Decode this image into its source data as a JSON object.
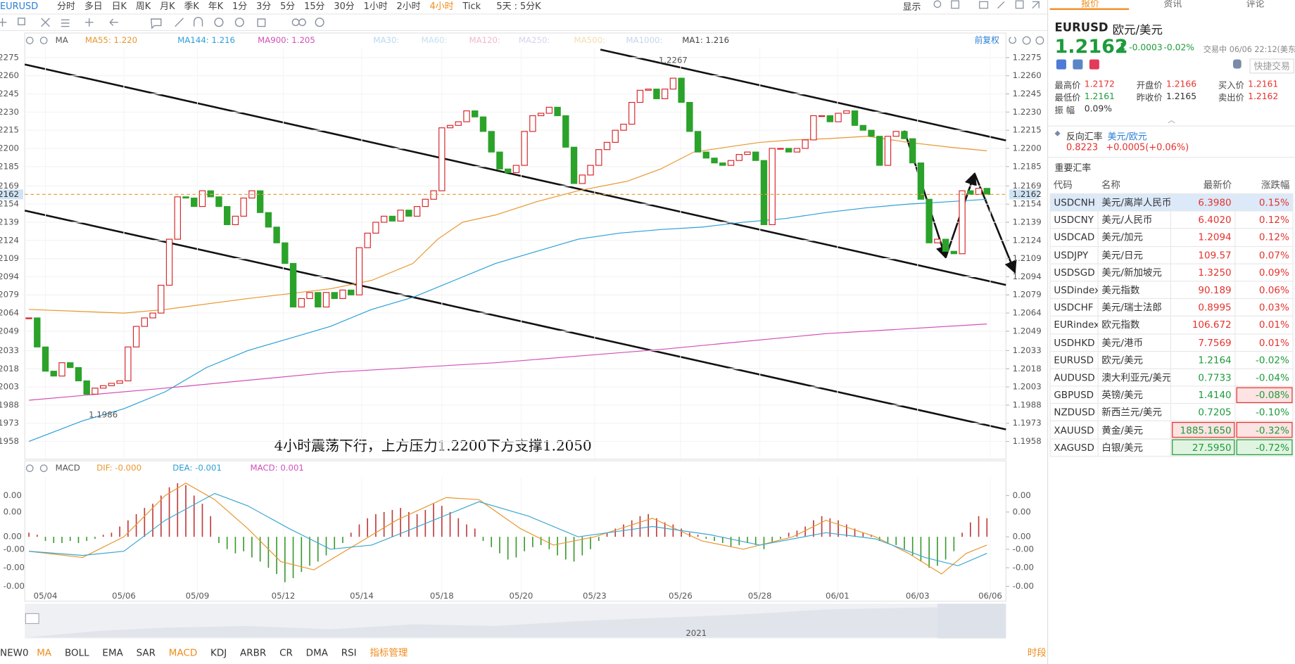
{
  "toolbar": {
    "symbol": "EURUSD",
    "periods": [
      "分时",
      "多日",
      "日K",
      "周K",
      "月K",
      "季K",
      "年K",
      "1分",
      "3分",
      "5分",
      "15分",
      "30分",
      "1小时",
      "2小时",
      "4小时",
      "Tick"
    ],
    "active_period": 14,
    "range": "5天 : 5分K",
    "display": "显示"
  },
  "indicator_bar": {
    "ma_label": "MA",
    "ma_items": [
      "MA55: 1.220",
      "MA144: 1.216",
      "MA900: 1.205",
      "MA30:",
      "MA60:",
      "MA120:",
      "MA250:",
      "MA500:",
      "MA1000:",
      "MA1: 1.216"
    ],
    "ma_colors": [
      "#e8962e",
      "#2b9fd8",
      "#d24fb8",
      "#b9d8ee",
      "#c6e0ef",
      "#f2b8c8",
      "#d9d0ef",
      "#f4dcae",
      "#c3d4ee",
      "#444444"
    ],
    "restore": "前复权",
    "macd_label": "MACD",
    "macd_items": [
      "DIF: -0.000",
      "DEA: -0.001",
      "MACD: 0.001"
    ],
    "macd_colors": [
      "#e8962e",
      "#2b9fd8",
      "#d24fb8"
    ]
  },
  "chart_data": [
    {
      "type": "candlestick",
      "annotation": "4小时震荡下行，上方压力1.2200下方支撑1.2050",
      "closes": [
        1.206,
        1.2036,
        1.2016,
        1.2012,
        1.2023,
        1.2019,
        1.2008,
        1.1997,
        1.2002,
        1.2004,
        1.2006,
        1.2008,
        1.2036,
        1.2053,
        1.206,
        1.2064,
        1.2087,
        1.2125,
        1.216,
        1.2159,
        1.2152,
        1.2165,
        1.216,
        1.2152,
        1.2137,
        1.2144,
        1.2159,
        1.2165,
        1.2147,
        1.2135,
        1.2122,
        1.2105,
        1.2069,
        1.2076,
        1.2081,
        1.2069,
        1.2081,
        1.2076,
        1.2083,
        1.2079,
        1.2118,
        1.213,
        1.2139,
        1.2144,
        1.214,
        1.2149,
        1.2144,
        1.2152,
        1.2158,
        1.2165,
        1.2217,
        1.2219,
        1.2222,
        1.2231,
        1.2226,
        1.2214,
        1.2197,
        1.2183,
        1.218,
        1.2186,
        1.2214,
        1.2227,
        1.2229,
        1.2234,
        1.2227,
        1.2201,
        1.2171,
        1.2178,
        1.2186,
        1.2199,
        1.2205,
        1.2215,
        1.222,
        1.2238,
        1.2248,
        1.2249,
        1.2241,
        1.2249,
        1.2258,
        1.2238,
        1.2214,
        1.2197,
        1.2192,
        1.2188,
        1.2186,
        1.219,
        1.2195,
        1.2197,
        1.219,
        1.2137,
        1.22,
        1.22,
        1.2197,
        1.22,
        1.2207,
        1.2227,
        1.2227,
        1.2222,
        1.2229,
        1.2231,
        1.2219,
        1.2215,
        1.221,
        1.2186,
        1.221,
        1.2214,
        1.2208,
        1.2188,
        1.2158,
        1.2122,
        1.2125,
        1.2115,
        1.2113,
        1.2165,
        1.2162,
        1.2167,
        1.2162
      ],
      "up_color": "#d7262b",
      "down_color": "#2ba22a",
      "last_price": 1.2162,
      "high_label": 1.2267,
      "low_label": 1.1986,
      "xlim": [
        -0.5,
        118.3
      ],
      "xticks": [
        {
          "value": 2,
          "label": "05/04"
        },
        {
          "value": 11.5,
          "label": "05/06"
        },
        {
          "value": 20.4,
          "label": "05/09"
        },
        {
          "value": 30.8,
          "label": "05/12"
        },
        {
          "value": 40.3,
          "label": "05/14"
        },
        {
          "value": 50,
          "label": "05/18"
        },
        {
          "value": 59.6,
          "label": "05/20"
        },
        {
          "value": 68.5,
          "label": "05/23"
        },
        {
          "value": 78.9,
          "label": "05/26"
        },
        {
          "value": 88.5,
          "label": "05/28"
        },
        {
          "value": 97.9,
          "label": "06/01"
        },
        {
          "value": 107.6,
          "label": "06/03"
        },
        {
          "value": 116.4,
          "label": "06/06"
        }
      ],
      "ylim": [
        1.1944,
        1.2283
      ],
      "yticks": [
        1.2275,
        {
          "value": 1.226,
          "label": "1.2260"
        },
        1.2245,
        {
          "value": 1.223,
          "label": "1.2230"
        },
        1.2215,
        {
          "value": 1.22,
          "label": "1.2200"
        },
        1.2185,
        1.2169,
        1.2154,
        1.2139,
        1.2124,
        1.2109,
        1.2094,
        1.2079,
        1.2064,
        1.2049,
        1.2033,
        1.2018,
        1.2003,
        1.1988,
        1.1973,
        1.1958
      ],
      "grid": true,
      "series": [
        {
          "color": "#e8962e",
          "x": [
            0,
            11.5,
            16.5,
            26.5,
            36.5,
            41.5,
            46.5,
            49.5,
            52.5,
            56.5,
            61.5,
            66.5,
            72.5,
            76.5,
            80.5,
            84.5,
            88.5,
            92.5,
            96.5,
            101.5,
            106.5,
            111.5,
            116
          ],
          "values": [
            1.2067,
            1.2064,
            1.2067,
            1.2076,
            1.2084,
            1.2091,
            1.2105,
            1.2125,
            1.2139,
            1.2145,
            1.2156,
            1.2165,
            1.2173,
            1.2183,
            1.2197,
            1.2201,
            1.2205,
            1.2207,
            1.2208,
            1.221,
            1.2205,
            1.2201,
            1.2198
          ]
        },
        {
          "color": "#2b9fd8",
          "x": [
            0,
            6.5,
            11.5,
            16.5,
            21.5,
            26.5,
            31.5,
            36.5,
            41.5,
            46.5,
            51.5,
            56.5,
            61.5,
            66.5,
            71.5,
            76.5,
            81.5,
            86.5,
            91.5,
            96.5,
            101.5,
            106.5,
            111.5,
            116
          ],
          "values": [
            1.1958,
            1.1975,
            1.1985,
            1.1999,
            1.2019,
            1.2033,
            1.2043,
            1.2053,
            1.2067,
            1.2077,
            1.2091,
            1.2105,
            1.2115,
            1.2125,
            1.213,
            1.2133,
            1.2135,
            1.2139,
            1.2142,
            1.2147,
            1.2151,
            1.2154,
            1.2156,
            1.2158
          ]
        },
        {
          "color": "#d24fb8",
          "x": [
            0,
            16.5,
            36.5,
            56.5,
            76.5,
            96.5,
            116
          ],
          "values": [
            1.1992,
            1.2002,
            1.2015,
            1.2023,
            1.2034,
            1.2047,
            1.2055
          ]
        }
      ]
    },
    {
      "type": "macd",
      "values": [
        0.0002,
        0.0001,
        -0.0002,
        -0.0003,
        -0.0003,
        -0.0002,
        -0.0003,
        -0.0002,
        -0.0001,
        0.0001,
        0.0002,
        0.0005,
        0.0008,
        0.0011,
        0.0014,
        0.0016,
        0.002,
        0.0024,
        0.0026,
        0.0025,
        0.002,
        0.0016,
        0.001,
        -0.0003,
        -0.0006,
        -0.0008,
        -0.0007,
        -0.001,
        -0.0012,
        -0.0015,
        -0.0018,
        -0.0022,
        -0.002,
        -0.0017,
        -0.0014,
        -0.0012,
        -0.0009,
        -0.0006,
        -0.0003,
        0.0002,
        0.0006,
        0.0009,
        0.0011,
        0.0012,
        0.0013,
        0.0014,
        0.0012,
        0.0011,
        0.0013,
        0.0016,
        0.0015,
        0.0012,
        0.0009,
        0.0006,
        0.0004,
        -0.0002,
        -0.0005,
        -0.0008,
        -0.0011,
        -0.001,
        -0.0007,
        -0.0005,
        -0.0004,
        -0.0006,
        -0.0009,
        -0.0011,
        -0.0012,
        -0.0009,
        -0.0006,
        -0.0002,
        0.0002,
        0.0004,
        0.0006,
        0.0008,
        0.001,
        0.0011,
        0.0009,
        0.0007,
        0.0006,
        0.0004,
        0.0002,
        0.0001,
        -0.0001,
        -0.0002,
        -0.0003,
        -0.0005,
        -0.0004,
        -0.0003,
        -0.0004,
        -0.0006,
        -0.0003,
        -0.0001,
        0.0002,
        0.0003,
        0.0005,
        0.0008,
        0.001,
        0.0009,
        0.0008,
        0.0006,
        0.0004,
        0.0002,
        0.0001,
        -0.0002,
        -0.0003,
        -0.0004,
        -0.0006,
        -0.0009,
        -0.0012,
        -0.0015,
        -0.0014,
        -0.0011,
        -0.0007,
        0.0002,
        0.0007,
        0.001,
        0.0009
      ],
      "up_color": "#c0393b",
      "down_color": "#3a9a2e",
      "xlim": [
        -0.5,
        118.3
      ],
      "ylim": [
        -0.0028,
        0.00288
      ],
      "yticks": [
        {
          "value": 0.002,
          "label": "0.00"
        },
        {
          "value": 0.0012,
          "label": "0.00"
        },
        {
          "value": 0,
          "label": "0.00"
        },
        {
          "value": -0.0006,
          "label": "-0.00"
        },
        {
          "value": -0.0015,
          "label": "-0.00"
        },
        {
          "value": -0.0024,
          "label": "-0.00"
        }
      ],
      "series": [
        {
          "color": "#e8962e",
          "x": [
            0,
            6.5,
            11.5,
            16.5,
            19,
            22.5,
            26.5,
            30.5,
            34.5,
            39.5,
            44.5,
            50.5,
            54.5,
            59.5,
            63.5,
            68.5,
            75.5,
            81.5,
            86.5,
            92.5,
            96.5,
            102.5,
            106.5,
            110.5,
            113.5,
            116
          ],
          "values": [
            -0.0007,
            -0.001,
            0,
            0.002,
            0.0026,
            0.0018,
            0.0004,
            -0.0012,
            -0.0016,
            -0.0004,
            0.0008,
            0.0019,
            0.0018,
            0.0004,
            -0.0004,
            0,
            0.0009,
            -0.0002,
            -0.0006,
            0,
            0.0008,
            0,
            -0.0008,
            -0.0018,
            -0.0008,
            -0.0004
          ]
        },
        {
          "color": "#3aa7cf",
          "x": [
            0,
            6.5,
            11.5,
            16.5,
            22.5,
            26.5,
            31.5,
            36.5,
            41.5,
            46.5,
            54.5,
            60.5,
            66.5,
            75.5,
            82.5,
            88.5,
            96.5,
            102.5,
            108.5,
            112.5,
            116
          ],
          "values": [
            -0.0007,
            -0.0009,
            -0.0007,
            0.0008,
            0.0021,
            0.0015,
            0.0004,
            -0.0006,
            -0.0004,
            0.0004,
            0.0017,
            0.001,
            0,
            0.0005,
            0.0001,
            -0.0004,
            0.0002,
            -0.0001,
            -0.001,
            -0.0014,
            -0.0008
          ]
        }
      ]
    }
  ],
  "navigator": {
    "year": "2021"
  },
  "bottom_bar": {
    "left": "NEW0",
    "items": [
      "MA",
      "BOLL",
      "EMA",
      "SAR",
      "MACD",
      "KDJ",
      "ARBR",
      "CR",
      "DMA",
      "RSI",
      "指标管理"
    ],
    "active": [
      0,
      4,
      10
    ],
    "right": "时段"
  },
  "quote": {
    "tabs": [
      "报价",
      "资讯",
      "评论"
    ],
    "active_tab": 0,
    "symbol": "EURUSD",
    "name": "欧元/美元",
    "price": "1.2162",
    "change": "-0.0003",
    "change_pct": "-0.02%",
    "status": "交易中 06/06 22:12(美东)",
    "quick_trade": "快捷交易",
    "stats": [
      {
        "label": "最高价",
        "value": "1.2172",
        "tone": "up"
      },
      {
        "label": "开盘价",
        "value": "1.2166",
        "tone": "up"
      },
      {
        "label": "买入价",
        "value": "1.2161",
        "tone": "up"
      },
      {
        "label": "最低价",
        "value": "1.2161",
        "tone": "down"
      },
      {
        "label": "昨收价",
        "value": "1.2165",
        "tone": "flat"
      },
      {
        "label": "卖出价",
        "value": "1.2162",
        "tone": "up"
      },
      {
        "label": "振 幅",
        "value": "0.09%",
        "tone": "flat"
      }
    ],
    "reverse": {
      "label": "反向汇率",
      "pair": "美元/欧元",
      "price": "0.8223",
      "change": "+0.0005(+0.06%)"
    }
  },
  "rates": {
    "title": "重要汇率",
    "columns": [
      "代码",
      "名称",
      "最新价",
      "涨跌幅"
    ],
    "rows": [
      {
        "code": "USDCNH",
        "name": "美元/离岸人民币",
        "price": "6.3980",
        "change": "0.15%"
      },
      {
        "code": "USDCNY",
        "name": "美元/人民币",
        "price": "6.4020",
        "change": "0.12%"
      },
      {
        "code": "USDCAD",
        "name": "美元/加元",
        "price": "1.2094",
        "change": "0.12%"
      },
      {
        "code": "USDJPY",
        "name": "美元/日元",
        "price": "109.57",
        "change": "0.07%"
      },
      {
        "code": "USDSGD",
        "name": "美元/新加坡元",
        "price": "1.3250",
        "change": "0.09%"
      },
      {
        "code": "USDindex",
        "name": "美元指数",
        "price": "90.189",
        "change": "0.06%"
      },
      {
        "code": "USDCHF",
        "name": "美元/瑞士法郎",
        "price": "0.8995",
        "change": "0.03%"
      },
      {
        "code": "EURindex",
        "name": "欧元指数",
        "price": "106.672",
        "change": "0.01%"
      },
      {
        "code": "USDHKD",
        "name": "美元/港币",
        "price": "7.7569",
        "change": "0.01%"
      },
      {
        "code": "EURUSD",
        "name": "欧元/美元",
        "price": "1.2164",
        "change": "-0.02%"
      },
      {
        "code": "AUDUSD",
        "name": "澳大利亚元/美元",
        "price": "0.7733",
        "change": "-0.04%"
      },
      {
        "code": "GBPUSD",
        "name": "英镑/美元",
        "price": "1.4140",
        "change": "-0.08%",
        "flash": "change-up"
      },
      {
        "code": "NZDUSD",
        "name": "新西兰元/美元",
        "price": "0.7205",
        "change": "-0.10%"
      },
      {
        "code": "XAUUSD",
        "name": "黄金/美元",
        "price": "1885.1650",
        "change": "-0.32%",
        "flash": "both-up"
      },
      {
        "code": "XAGUSD",
        "name": "白银/美元",
        "price": "27.5950",
        "change": "-0.72%",
        "flash": "both-down"
      }
    ],
    "selected": 0
  }
}
